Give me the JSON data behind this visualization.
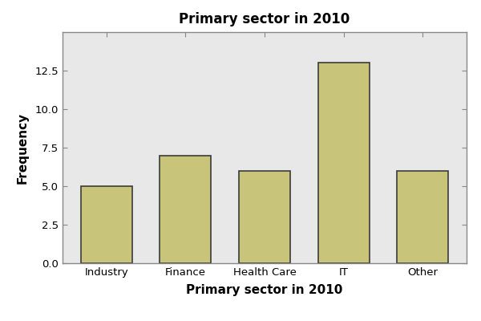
{
  "categories": [
    "Industry",
    "Finance",
    "Health Care",
    "IT",
    "Other"
  ],
  "values": [
    5,
    7,
    6,
    13,
    6
  ],
  "bar_color": "#c8c47a",
  "bar_edgecolor": "#3a3a3a",
  "title": "Primary sector in 2010",
  "xlabel": "Primary sector in 2010",
  "ylabel": "Frequency",
  "ylim": [
    0,
    15
  ],
  "yticks": [
    0.0,
    2.5,
    5.0,
    7.5,
    10.0,
    12.5
  ],
  "plot_bg_color": "#e8e8e8",
  "fig_bg_color": "#ffffff",
  "title_fontsize": 12,
  "label_fontsize": 11,
  "tick_fontsize": 9.5,
  "bar_width": 0.65,
  "spine_color": "#888888",
  "linewidth": 1.2
}
